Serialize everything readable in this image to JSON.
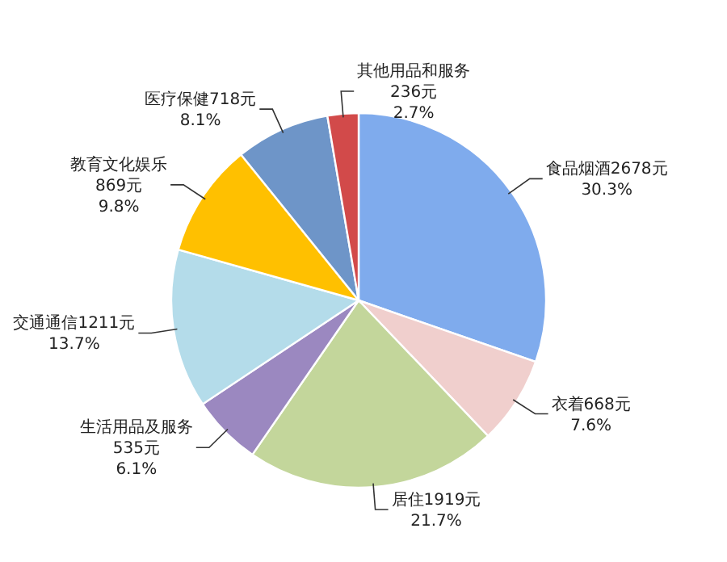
{
  "chart_data": {
    "type": "pie",
    "categories": [
      "食品烟酒",
      "衣着",
      "居住",
      "生活用品及服务",
      "交通通信",
      "教育文化娱乐",
      "医疗保健",
      "其他用品和服务"
    ],
    "values": [
      2678,
      668,
      1919,
      535,
      1211,
      869,
      718,
      236
    ],
    "value_labels": [
      "2678元\n30.3%",
      "668元\n7.6%",
      "1919元\n21.7%",
      "535元\n6.1%",
      "1211元\n13.7%",
      "869元\n9.8%",
      "718元\n8.1%",
      "236元\n2.7%"
    ],
    "colors": [
      "#7fabed",
      "#f0cfcd",
      "#c3d69b",
      "#9b88c0",
      "#b4dcea",
      "#ffc000",
      "#6e95c8",
      "#d24a4a"
    ]
  }
}
